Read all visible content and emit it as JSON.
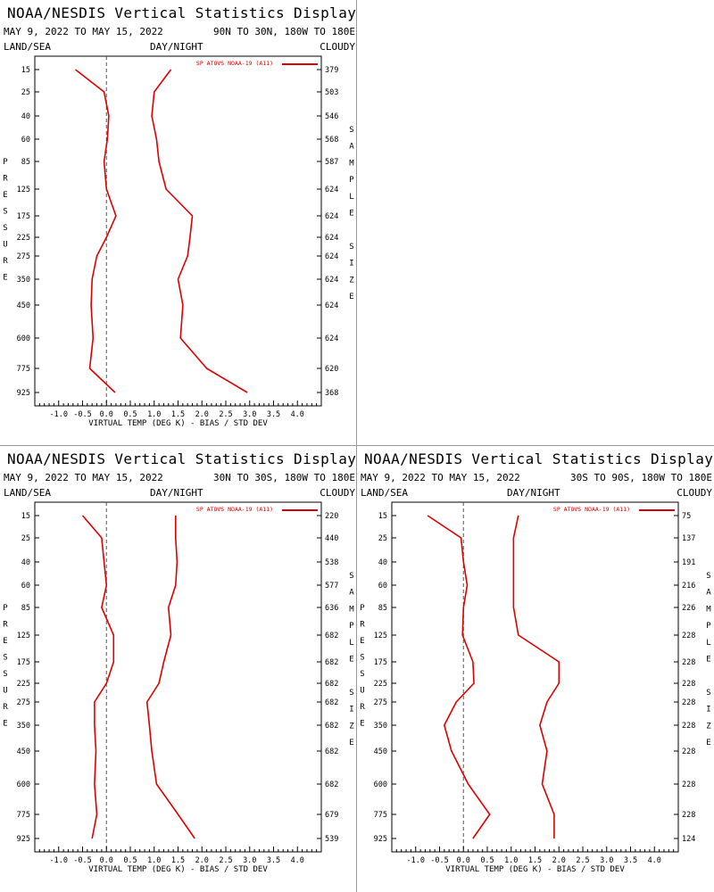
{
  "page": {
    "header": {
      "land_sea": "LAND/SEA",
      "day_night": "DAY/NIGHT",
      "cloudy": "CLOUDY"
    }
  },
  "chart_data": [
    {
      "type": "line",
      "title": "NOAA/NESDIS Vertical Statistics Display",
      "date_range": "MAY 9, 2022 TO MAY 15, 2022",
      "region": "90N TO 30N, 180W TO 180E",
      "xlabel": "VIRTUAL TEMP (DEG K) - BIAS / STD DEV",
      "ylabel": "PRESSURE",
      "right_label": "SAMPLE SIZE",
      "legend": "SP ATOVS NOAA-19 (A11)",
      "x_ticks": [
        "-1.0",
        "-0.5",
        "0.0",
        "0.5",
        "1.0",
        "1.5",
        "2.0",
        "2.5",
        "3.0",
        "3.5",
        "4.0"
      ],
      "xlim": [
        -1.5,
        4.5
      ],
      "pressure_levels": [
        15,
        25,
        40,
        60,
        85,
        125,
        175,
        225,
        275,
        350,
        450,
        600,
        775,
        925
      ],
      "sample_size": [
        379,
        503,
        546,
        568,
        587,
        624,
        624,
        624,
        624,
        624,
        624,
        624,
        620,
        368
      ],
      "series": [
        {
          "kind": "bias",
          "values": [
            -0.65,
            -0.05,
            0.05,
            0.02,
            -0.05,
            0.0,
            0.2,
            0.0,
            -0.2,
            -0.3,
            -0.32,
            -0.28,
            -0.35,
            0.18
          ]
        },
        {
          "kind": "std_dev",
          "values": [
            1.35,
            1.0,
            0.95,
            1.05,
            1.1,
            1.25,
            1.8,
            1.75,
            1.7,
            1.5,
            1.6,
            1.55,
            2.1,
            2.95
          ]
        }
      ]
    },
    {
      "type": "line",
      "title": "NOAA/NESDIS Vertical Statistics Display",
      "date_range": "MAY 9, 2022 TO MAY 15, 2022",
      "region": "30N TO 30S, 180W TO 180E",
      "xlabel": "VIRTUAL TEMP (DEG K) - BIAS / STD DEV",
      "ylabel": "PRESSURE",
      "right_label": "SAMPLE SIZE",
      "legend": "SP ATOVS NOAA-19 (A11)",
      "x_ticks": [
        "-1.0",
        "-0.5",
        "0.0",
        "0.5",
        "1.0",
        "1.5",
        "2.0",
        "2.5",
        "3.0",
        "3.5",
        "4.0"
      ],
      "xlim": [
        -1.5,
        4.5
      ],
      "pressure_levels": [
        15,
        25,
        40,
        60,
        85,
        125,
        175,
        225,
        275,
        350,
        450,
        600,
        775,
        925
      ],
      "sample_size": [
        220,
        440,
        538,
        577,
        636,
        682,
        682,
        682,
        682,
        682,
        682,
        682,
        679,
        539
      ],
      "series": [
        {
          "kind": "bias",
          "values": [
            -0.5,
            -0.1,
            -0.05,
            0.0,
            -0.1,
            0.15,
            0.15,
            0.0,
            -0.25,
            -0.25,
            -0.22,
            -0.25,
            -0.2,
            -0.3
          ]
        },
        {
          "kind": "std_dev",
          "values": [
            1.45,
            1.45,
            1.48,
            1.45,
            1.3,
            1.35,
            1.2,
            1.1,
            0.85,
            0.9,
            0.95,
            1.05,
            1.5,
            1.85
          ]
        }
      ]
    },
    {
      "type": "line",
      "title": "NOAA/NESDIS Vertical Statistics Display",
      "date_range": "MAY 9, 2022 TO MAY 15, 2022",
      "region": "30S TO 90S, 180W TO 180E",
      "xlabel": "VIRTUAL TEMP (DEG K) - BIAS / STD DEV",
      "ylabel": "PRESSURE",
      "right_label": "SAMPLE SIZE",
      "legend": "SP ATOVS NOAA-19 (A11)",
      "x_ticks": [
        "-1.0",
        "-0.5",
        "0.0",
        "0.5",
        "1.0",
        "1.5",
        "2.0",
        "2.5",
        "3.0",
        "3.5",
        "4.0"
      ],
      "xlim": [
        -1.5,
        4.5
      ],
      "pressure_levels": [
        15,
        25,
        40,
        60,
        85,
        125,
        175,
        225,
        275,
        350,
        450,
        600,
        775,
        925
      ],
      "sample_size": [
        75,
        137,
        191,
        216,
        226,
        228,
        228,
        228,
        228,
        228,
        228,
        228,
        228,
        124
      ],
      "series": [
        {
          "kind": "bias",
          "values": [
            -0.75,
            -0.05,
            0.0,
            0.08,
            0.0,
            -0.02,
            0.2,
            0.22,
            -0.15,
            -0.4,
            -0.25,
            0.1,
            0.55,
            0.2
          ]
        },
        {
          "kind": "std_dev",
          "values": [
            1.15,
            1.05,
            1.05,
            1.05,
            1.05,
            1.15,
            2.0,
            2.0,
            1.75,
            1.6,
            1.75,
            1.65,
            1.9,
            1.9
          ]
        }
      ]
    }
  ]
}
